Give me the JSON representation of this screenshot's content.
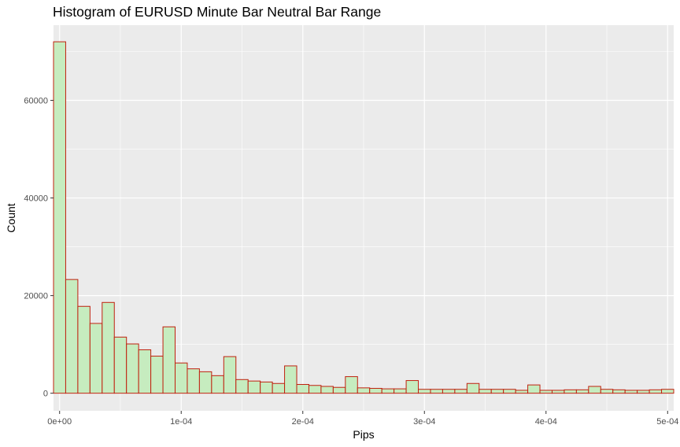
{
  "chart_data": {
    "type": "bar",
    "title": "Histogram of EURUSD Minute Bar Neutral Bar Range",
    "xlabel": "Pips",
    "ylabel": "Count",
    "xlim": [
      -5e-06,
      0.000505
    ],
    "ylim": [
      -3600,
      75400
    ],
    "bin_width": 1e-05,
    "x_ticks": [
      {
        "value": 0,
        "label": "0e+00"
      },
      {
        "value": 0.0001,
        "label": "1e-04"
      },
      {
        "value": 0.0002,
        "label": "2e-04"
      },
      {
        "value": 0.0003,
        "label": "3e-04"
      },
      {
        "value": 0.0004,
        "label": "4e-04"
      },
      {
        "value": 0.0005,
        "label": "5e-04"
      }
    ],
    "y_ticks": [
      {
        "value": 0,
        "label": "0"
      },
      {
        "value": 20000,
        "label": "20000"
      },
      {
        "value": 40000,
        "label": "40000"
      },
      {
        "value": 60000,
        "label": "60000"
      }
    ],
    "bin_centers": [
      0,
      1e-05,
      2e-05,
      3e-05,
      4e-05,
      5e-05,
      6e-05,
      7e-05,
      8e-05,
      9e-05,
      0.0001,
      0.00011,
      0.00012,
      0.00013,
      0.00014,
      0.00015,
      0.00016,
      0.00017,
      0.00018,
      0.00019,
      0.0002,
      0.00021,
      0.00022,
      0.00023,
      0.00024,
      0.00025,
      0.00026,
      0.00027,
      0.00028,
      0.00029,
      0.0003,
      0.00031,
      0.00032,
      0.00033,
      0.00034,
      0.00035,
      0.00036,
      0.00037,
      0.00038,
      0.00039,
      0.0004,
      0.00041,
      0.00042,
      0.00043,
      0.00044,
      0.00045,
      0.00046,
      0.00047,
      0.00048,
      0.00049,
      0.0005
    ],
    "values": [
      72000,
      23300,
      17800,
      14300,
      18600,
      11500,
      10100,
      8900,
      7600,
      13600,
      6200,
      5000,
      4400,
      3600,
      7500,
      2800,
      2500,
      2300,
      2000,
      5600,
      1800,
      1600,
      1400,
      1200,
      3400,
      1100,
      1000,
      900,
      900,
      2600,
      800,
      800,
      800,
      800,
      2000,
      800,
      800,
      800,
      600,
      1700,
      600,
      600,
      700,
      700,
      1400,
      800,
      700,
      600,
      600,
      700,
      800
    ],
    "grid": true,
    "background": "#ebebeb",
    "grid_major_color": "#ffffff",
    "bar_fill": "#c6ecbf",
    "bar_stroke": "#c0210f"
  }
}
